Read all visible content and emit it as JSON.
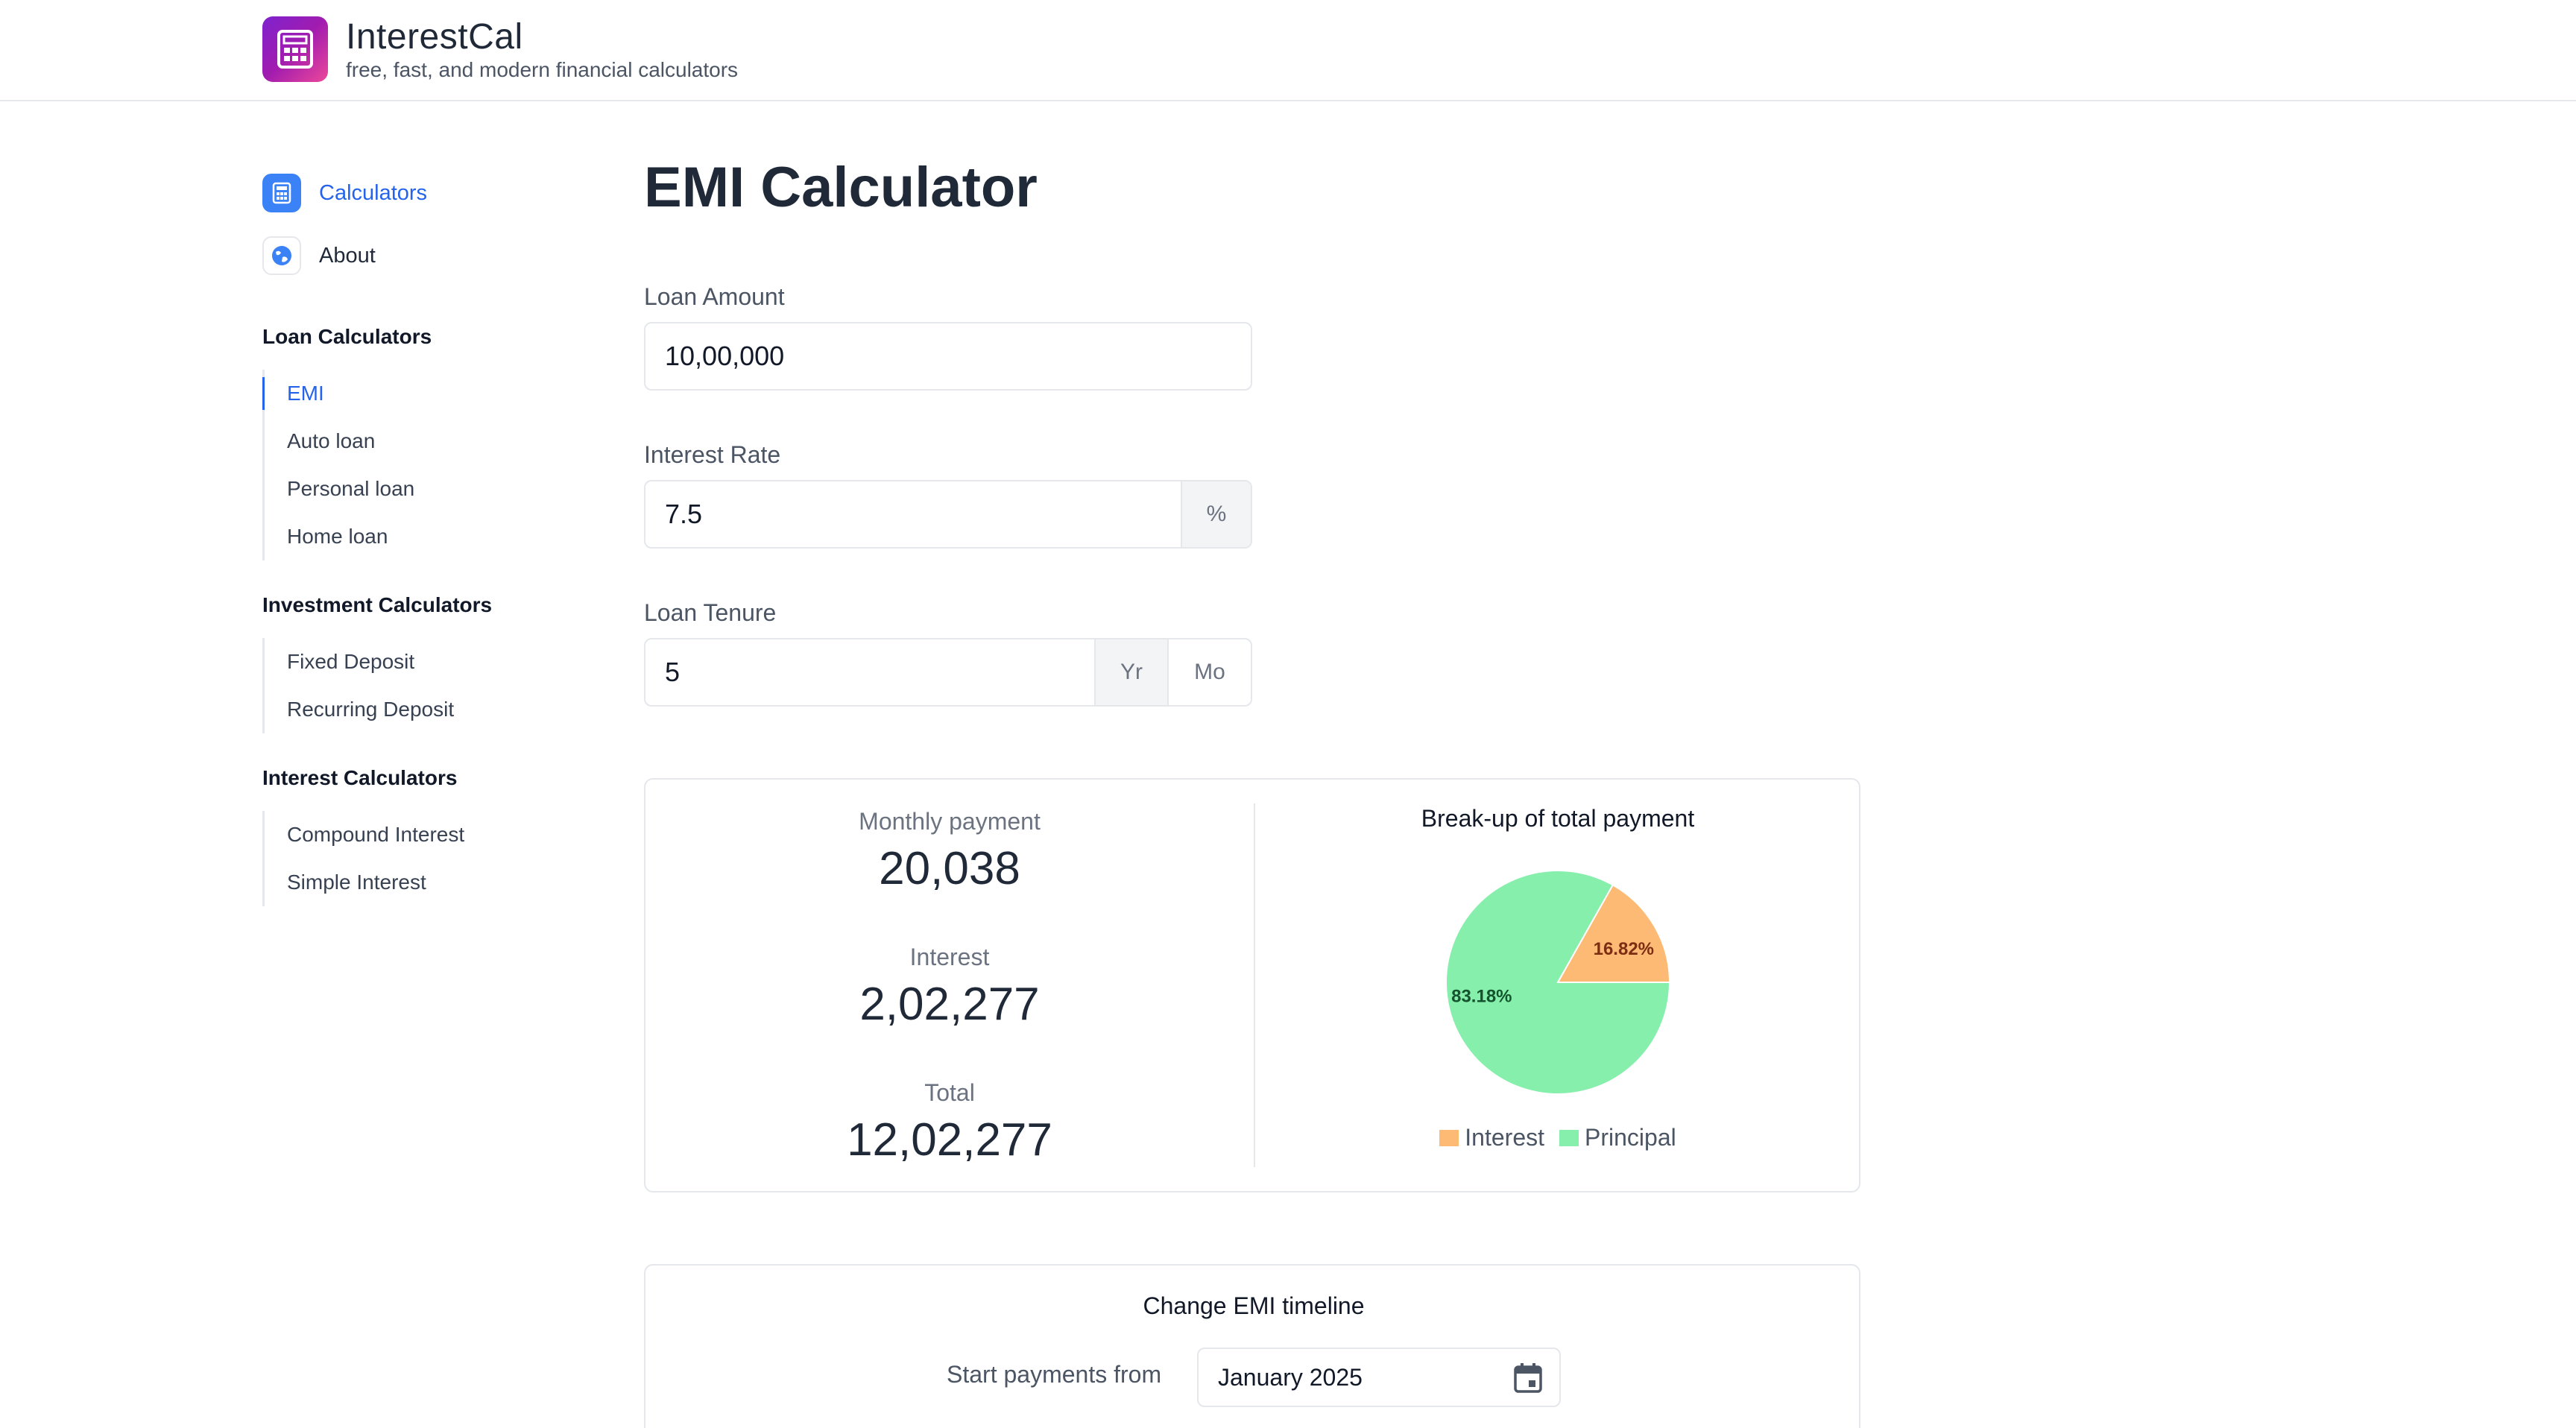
{
  "app": {
    "name": "InterestCal",
    "tagline": "free, fast, and modern financial calculators"
  },
  "sidebar": {
    "top": [
      {
        "label": "Calculators",
        "icon": "calculator-icon",
        "active": true
      },
      {
        "label": "About",
        "icon": "globe-icon",
        "active": false
      }
    ],
    "sections": [
      {
        "heading": "Loan Calculators",
        "items": [
          "EMI",
          "Auto loan",
          "Personal loan",
          "Home loan"
        ],
        "active": "EMI"
      },
      {
        "heading": "Investment Calculators",
        "items": [
          "Fixed Deposit",
          "Recurring Deposit"
        ]
      },
      {
        "heading": "Interest Calculators",
        "items": [
          "Compound Interest",
          "Simple Interest"
        ]
      }
    ]
  },
  "main": {
    "title": "EMI Calculator",
    "loan_amount": {
      "label": "Loan Amount",
      "value": "10,00,000"
    },
    "interest_rate": {
      "label": "Interest Rate",
      "value": "7.5",
      "suffix": "%"
    },
    "loan_tenure": {
      "label": "Loan Tenure",
      "value": "5",
      "unit_year": "Yr",
      "unit_month": "Mo"
    },
    "results": {
      "monthly_label": "Monthly payment",
      "monthly_value": "20,038",
      "interest_label": "Interest",
      "interest_value": "2,02,277",
      "total_label": "Total",
      "total_value": "12,02,277"
    },
    "timeline": {
      "title": "Change EMI timeline",
      "start_label": "Start payments from",
      "start_value": "January 2025"
    }
  },
  "chart_data": {
    "type": "pie",
    "title": "Break-up of total payment",
    "categories": [
      "Interest",
      "Principal"
    ],
    "values": [
      16.82,
      83.18
    ],
    "labels": [
      "16.82%",
      "83.18%"
    ],
    "colors": [
      "#fdba74",
      "#86efac"
    ],
    "legend": "bottom"
  },
  "colors": {
    "accent": "#2563eb",
    "interest": "#fdba74",
    "principal": "#86efac"
  }
}
